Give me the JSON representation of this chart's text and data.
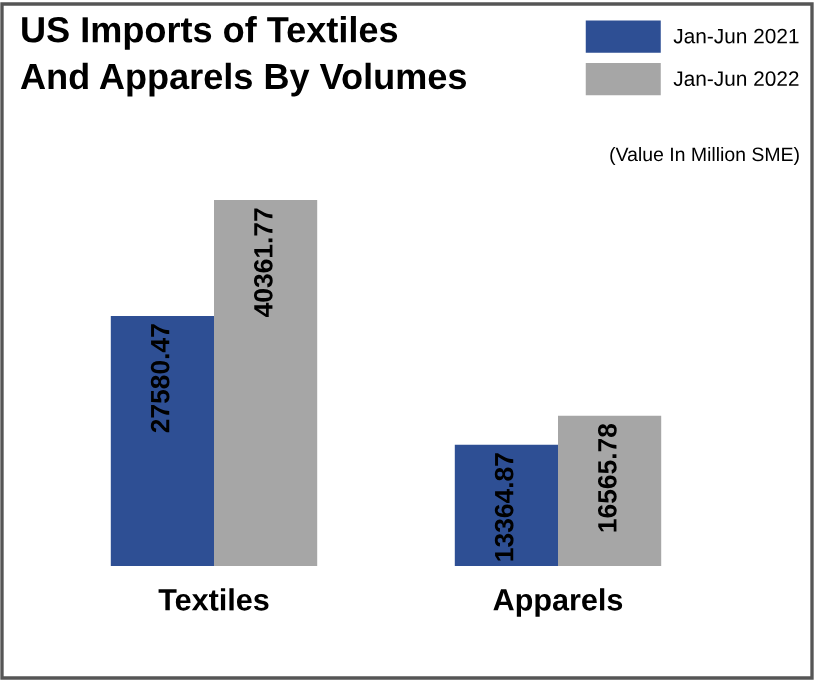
{
  "chart_data": {
    "type": "bar",
    "title": "US Imports of Textiles\nAnd Apparels By Volumes",
    "categories": [
      "Textiles",
      "Apparels"
    ],
    "series": [
      {
        "name": "Jan-Jun 2021",
        "color": "#2e4f94",
        "values": [
          27580.47,
          13364.87
        ]
      },
      {
        "name": "Jan-Jun 2022",
        "color": "#a6a6a6",
        "values": [
          40361.77,
          16565.78
        ]
      }
    ],
    "annotations": [
      "(Value In Million SME)"
    ],
    "data_labels": true,
    "legend": "top right",
    "grid": false
  }
}
